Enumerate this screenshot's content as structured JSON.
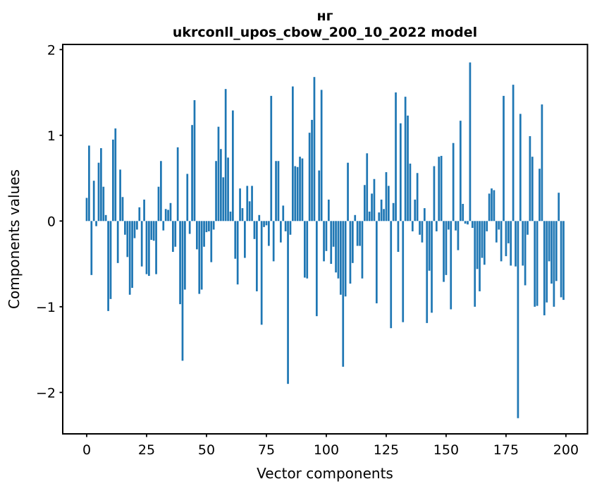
{
  "figure": {
    "title_line1": "нг",
    "title_line2": "ukrconll_upos_cbow_200_10_2022 model",
    "xlabel": "Vector components",
    "ylabel": "Components values"
  },
  "chart_data": {
    "type": "bar",
    "title": "нг",
    "subtitle": "ukrconll_upos_cbow_200_10_2022 model",
    "xlabel": "Vector components",
    "ylabel": "Components values",
    "bar_color": "#1f77b4",
    "axis_color": "#000000",
    "background": "#ffffff",
    "grid": false,
    "x_ticks": [
      0,
      25,
      50,
      75,
      100,
      125,
      150,
      175,
      200
    ],
    "y_ticks": [
      -2,
      -1,
      0,
      1,
      2
    ],
    "xlim": [
      -10,
      209
    ],
    "ylim": [
      -2.483,
      2.06
    ],
    "x_start": 0,
    "n_components": 200,
    "values": [
      0.27,
      0.88,
      -0.63,
      0.47,
      -0.06,
      0.68,
      0.85,
      0.4,
      0.07,
      -1.05,
      -0.91,
      0.95,
      1.08,
      -0.49,
      0.6,
      0.28,
      -0.16,
      -0.42,
      -0.86,
      -0.78,
      -0.2,
      -0.1,
      0.16,
      -0.53,
      0.25,
      -0.62,
      -0.64,
      -0.22,
      -0.23,
      -0.62,
      0.4,
      0.7,
      -0.11,
      0.14,
      0.13,
      0.21,
      -0.36,
      -0.3,
      0.86,
      -0.97,
      -1.63,
      -0.8,
      0.55,
      -0.15,
      1.12,
      1.41,
      -0.33,
      -0.85,
      -0.8,
      -0.3,
      -0.13,
      -0.12,
      -0.48,
      -0.1,
      0.7,
      1.1,
      0.84,
      0.51,
      1.54,
      0.74,
      0.11,
      1.29,
      -0.44,
      -0.74,
      0.38,
      0.15,
      -0.43,
      0.41,
      0.23,
      0.41,
      -0.21,
      -0.82,
      0.07,
      -1.21,
      -0.07,
      -0.05,
      -0.29,
      1.46,
      -0.47,
      0.7,
      0.7,
      -0.25,
      0.18,
      -0.12,
      -1.9,
      -0.16,
      1.57,
      0.64,
      0.63,
      0.75,
      0.73,
      -0.66,
      -0.67,
      1.03,
      1.18,
      1.68,
      -1.11,
      0.59,
      1.53,
      -0.47,
      -0.35,
      0.25,
      -0.5,
      -0.3,
      -0.6,
      -0.67,
      -0.86,
      -1.7,
      -0.88,
      0.68,
      -0.73,
      -0.49,
      0.07,
      -0.29,
      -0.29,
      -0.67,
      0.42,
      0.79,
      0.11,
      0.32,
      0.49,
      -0.96,
      0.1,
      0.25,
      0.14,
      0.57,
      0.41,
      -1.25,
      0.21,
      1.5,
      -0.36,
      1.14,
      -1.18,
      1.45,
      1.23,
      0.67,
      -0.12,
      0.25,
      0.56,
      -0.16,
      -0.25,
      0.15,
      -1.19,
      -0.58,
      -1.07,
      0.64,
      -0.12,
      0.75,
      0.76,
      -0.71,
      -0.63,
      -0.1,
      -1.03,
      0.91,
      -0.11,
      -0.34,
      1.17,
      0.2,
      -0.03,
      -0.04,
      1.85,
      -0.08,
      -1.0,
      -0.56,
      -0.82,
      -0.43,
      -0.51,
      -0.12,
      0.32,
      0.38,
      0.36,
      -0.25,
      -0.1,
      -0.47,
      1.46,
      -0.41,
      -0.26,
      -0.52,
      1.59,
      -0.53,
      -2.3,
      1.25,
      -0.52,
      -0.75,
      -0.16,
      0.99,
      0.75,
      -1.0,
      -0.99,
      0.61,
      1.36,
      -1.1,
      -0.95,
      -0.47,
      -0.73,
      -1.0,
      -0.7,
      0.33,
      -0.89,
      -0.92
    ]
  }
}
